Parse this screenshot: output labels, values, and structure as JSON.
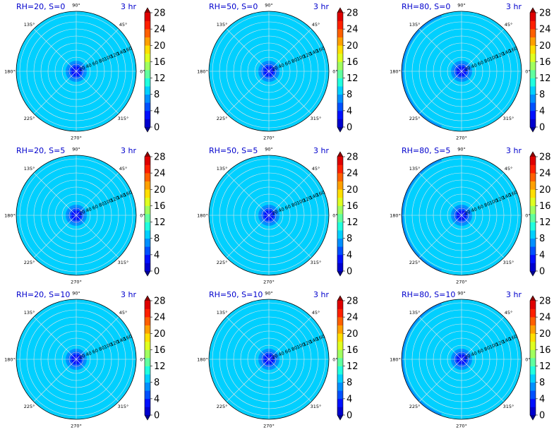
{
  "chart_data": {
    "type": "polar-contour",
    "time_label": "3 hr",
    "theta_ticks": [
      "0°",
      "45°",
      "90°",
      "135°",
      "180°",
      "225°",
      "270°",
      "315°"
    ],
    "theta_degrees": [
      0,
      45,
      90,
      135,
      180,
      225,
      270,
      315
    ],
    "r_ticks": [
      20,
      40,
      60,
      80,
      100,
      120,
      140,
      160
    ],
    "r_max": 170,
    "colorbar": {
      "levels": [
        0,
        2,
        4,
        6,
        8,
        10,
        12,
        14,
        16,
        18,
        20,
        22,
        24,
        26,
        28
      ],
      "tick_labels": [
        "0",
        "4",
        "8",
        "12",
        "16",
        "20",
        "24",
        "28"
      ],
      "colors": [
        "#00008f",
        "#0000ce",
        "#0010ff",
        "#0050ff",
        "#0090ff",
        "#00d0ff",
        "#20ffdf",
        "#60ff9f",
        "#a0ff5f",
        "#dfff20",
        "#ffdf00",
        "#ffa000",
        "#ff6000",
        "#ff2000",
        "#df0000",
        "#8f0000"
      ],
      "extend": "both"
    },
    "panels": [
      {
        "title": "RH=20, S=0",
        "background_value": 9,
        "core": [
          {
            "r": 30,
            "value": 7
          },
          {
            "r": 22,
            "value": 5
          },
          {
            "r": 14,
            "value": 3
          }
        ],
        "edge_band": false
      },
      {
        "title": "RH=50, S=0",
        "background_value": 9,
        "core": [
          {
            "r": 30,
            "value": 7
          },
          {
            "r": 22,
            "value": 5
          },
          {
            "r": 14,
            "value": 3
          }
        ],
        "edge_band": false
      },
      {
        "title": "RH=80, S=0",
        "background_value": 9,
        "core": [
          {
            "r": 30,
            "value": 7
          },
          {
            "r": 22,
            "value": 5
          },
          {
            "r": 14,
            "value": 3
          }
        ],
        "edge_band": true
      },
      {
        "title": "RH=20, S=5",
        "background_value": 9,
        "core": [
          {
            "r": 30,
            "value": 7
          },
          {
            "r": 22,
            "value": 5
          },
          {
            "r": 14,
            "value": 3
          }
        ],
        "edge_band": false
      },
      {
        "title": "RH=50, S=5",
        "background_value": 9,
        "core": [
          {
            "r": 30,
            "value": 7
          },
          {
            "r": 22,
            "value": 5
          },
          {
            "r": 14,
            "value": 3
          }
        ],
        "edge_band": false
      },
      {
        "title": "RH=80, S=5",
        "background_value": 9,
        "core": [
          {
            "r": 30,
            "value": 7
          },
          {
            "r": 22,
            "value": 5
          },
          {
            "r": 14,
            "value": 3
          }
        ],
        "edge_band": true
      },
      {
        "title": "RH=20, S=10",
        "background_value": 9,
        "core": [
          {
            "r": 30,
            "value": 7
          },
          {
            "r": 22,
            "value": 5
          },
          {
            "r": 14,
            "value": 3
          }
        ],
        "edge_band": false
      },
      {
        "title": "RH=50, S=10",
        "background_value": 9,
        "core": [
          {
            "r": 30,
            "value": 7
          },
          {
            "r": 22,
            "value": 5
          },
          {
            "r": 14,
            "value": 3
          }
        ],
        "edge_band": false
      },
      {
        "title": "RH=80, S=10",
        "background_value": 9,
        "core": [
          {
            "r": 30,
            "value": 7
          },
          {
            "r": 22,
            "value": 5
          },
          {
            "r": 14,
            "value": 3
          }
        ],
        "edge_band": true
      }
    ]
  }
}
